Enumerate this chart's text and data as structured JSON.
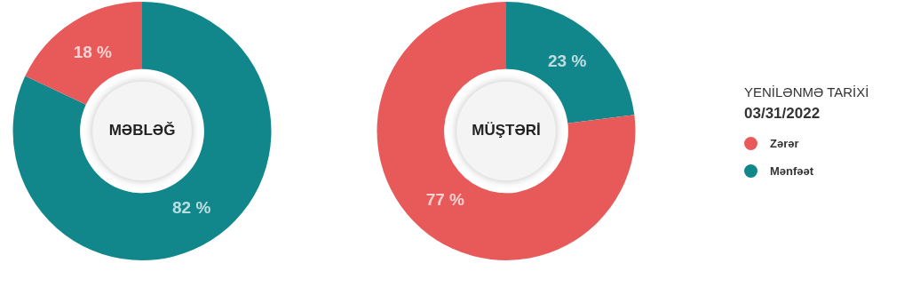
{
  "chart_data": [
    {
      "type": "donut",
      "title": "MƏBLƏĞ",
      "categories": [
        null,
        null
      ],
      "values": [
        82,
        18
      ],
      "colors": [
        "#11878c",
        "#e85a5a"
      ],
      "value_labels": [
        "82 %",
        "18 %"
      ],
      "legend": false
    },
    {
      "type": "donut",
      "title": "MÜŞTƏRİ",
      "categories": [
        "Mənfəət",
        "Zərər"
      ],
      "values": [
        23,
        77
      ],
      "colors": [
        "#11878c",
        "#e85a5a"
      ],
      "value_labels": [
        "23 %",
        "77 %"
      ],
      "legend": "right",
      "legend_title": "YENİLƏNMƏ TARİXİ",
      "annotations": [
        "03/31/2022"
      ]
    }
  ]
}
